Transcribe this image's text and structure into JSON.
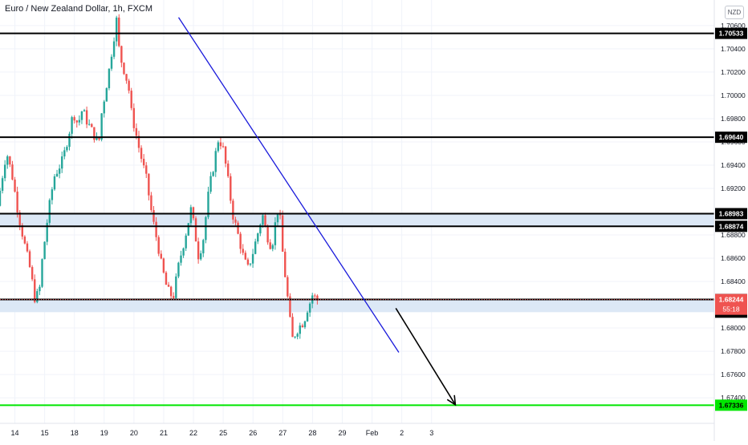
{
  "chart_data": {
    "type": "candlestick",
    "title": "Euro / New Zealand Dollar, 1h, FXCM",
    "currency": "NZD",
    "colors": {
      "up": "#26a69a",
      "down": "#ef5350",
      "trendline": "#1a1adb",
      "level_line": "#000000",
      "zone_fill": "#dce8f6",
      "target_line": "#00e600",
      "axis_text": "#131722",
      "current_price_bg": "#ef5350"
    },
    "ylim": [
      1.6718,
      1.7082
    ],
    "y_ticks": [
      "1.70600",
      "1.70400",
      "1.70200",
      "1.70000",
      "1.69800",
      "1.69600",
      "1.69400",
      "1.69200",
      "1.69000",
      "1.68800",
      "1.68600",
      "1.68400",
      "1.68200",
      "1.68000",
      "1.67800",
      "1.67600",
      "1.67400"
    ],
    "x_ticks": [
      "14",
      "15",
      "18",
      "19",
      "20",
      "21",
      "22",
      "25",
      "26",
      "27",
      "28",
      "29",
      "Feb",
      "2",
      "3"
    ],
    "x_range": [
      13.6,
      37.6
    ],
    "levels": [
      {
        "label": "1.70533",
        "value": 1.70533
      },
      {
        "label": "1.69640",
        "value": 1.6964
      },
      {
        "label": "1.68983",
        "value": 1.68983
      },
      {
        "label": "1.68874",
        "value": 1.68874
      },
      {
        "label": "1.68245",
        "value": 1.68245
      },
      {
        "label": "1.67336",
        "value": 1.67336,
        "kind": "target"
      }
    ],
    "zones": [
      {
        "from": 1.68874,
        "to": 1.68983
      },
      {
        "from": 1.68136,
        "to": 1.68245
      }
    ],
    "current_price": {
      "label": "1.68244",
      "value": 1.68244,
      "countdown": "55:18"
    },
    "marker_price": {
      "label": "1.68136",
      "value": 1.68136
    },
    "trendline": [
      [
        19.6,
        1.7067
      ],
      [
        27.0,
        1.6779
      ]
    ],
    "arrow": [
      [
        26.9,
        1.6817
      ],
      [
        28.9,
        1.6734
      ]
    ],
    "price_path": [
      [
        13.6,
        1.6905
      ],
      [
        13.9,
        1.6952
      ],
      [
        14.1,
        1.693
      ],
      [
        14.3,
        1.6898
      ],
      [
        14.5,
        1.6873
      ],
      [
        14.7,
        1.685
      ],
      [
        14.85,
        1.6826
      ],
      [
        15.0,
        1.683
      ],
      [
        15.1,
        1.6858
      ],
      [
        15.3,
        1.6898
      ],
      [
        15.5,
        1.693
      ],
      [
        15.8,
        1.6945
      ],
      [
        15.95,
        1.6962
      ],
      [
        16.15,
        1.6985
      ],
      [
        16.3,
        1.6975
      ],
      [
        16.45,
        1.6988
      ],
      [
        16.6,
        1.6978
      ],
      [
        16.8,
        1.6968
      ],
      [
        17.0,
        1.6958
      ],
      [
        17.1,
        1.6985
      ],
      [
        17.35,
        1.7022
      ],
      [
        17.45,
        1.704
      ],
      [
        17.6,
        1.7065
      ],
      [
        17.7,
        1.7035
      ],
      [
        17.85,
        1.7022
      ],
      [
        18.0,
        1.7008
      ],
      [
        18.1,
        1.6985
      ],
      [
        18.35,
        1.6955
      ],
      [
        18.6,
        1.6928
      ],
      [
        18.8,
        1.6895
      ],
      [
        19.0,
        1.687
      ],
      [
        19.1,
        1.6855
      ],
      [
        19.3,
        1.6833
      ],
      [
        19.5,
        1.6826
      ],
      [
        19.7,
        1.6856
      ],
      [
        19.9,
        1.6878
      ],
      [
        20.1,
        1.6902
      ],
      [
        20.2,
        1.6888
      ],
      [
        20.35,
        1.6862
      ],
      [
        20.5,
        1.6874
      ],
      [
        20.7,
        1.6918
      ],
      [
        20.9,
        1.6945
      ],
      [
        21.0,
        1.6962
      ],
      [
        21.15,
        1.6958
      ],
      [
        21.3,
        1.6935
      ],
      [
        21.5,
        1.6898
      ],
      [
        21.7,
        1.6878
      ],
      [
        21.85,
        1.6862
      ],
      [
        22.0,
        1.685
      ],
      [
        22.15,
        1.6862
      ],
      [
        22.35,
        1.6882
      ],
      [
        22.5,
        1.6898
      ],
      [
        22.6,
        1.6885
      ],
      [
        22.75,
        1.6872
      ],
      [
        22.85,
        1.6875
      ],
      [
        23.0,
        1.6902
      ],
      [
        23.1,
        1.6892
      ],
      [
        23.2,
        1.6858
      ],
      [
        23.3,
        1.6838
      ],
      [
        23.4,
        1.6812
      ],
      [
        23.5,
        1.679
      ],
      [
        23.7,
        1.68
      ],
      [
        23.9,
        1.6806
      ],
      [
        24.0,
        1.6816
      ],
      [
        24.1,
        1.6822
      ],
      [
        24.2,
        1.683
      ],
      [
        24.3,
        1.6824
      ]
    ]
  }
}
